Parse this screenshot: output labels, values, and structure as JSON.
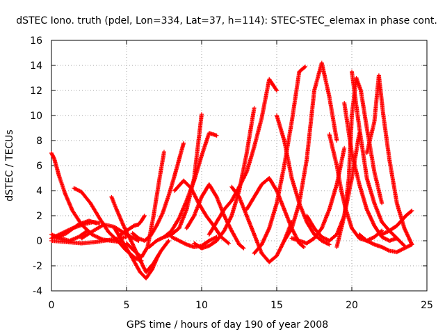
{
  "chart_data": {
    "type": "scatter",
    "title": "dSTEC Iono. truth (pdel, Lon=334, Lat=37, h=114): STEC-STEC_elemax in phase cont.",
    "xlabel": "GPS time / hours of day 190 of year 2008",
    "ylabel": "dSTEC  / TECUs",
    "xlim": [
      0,
      25
    ],
    "ylim": [
      -4,
      16
    ],
    "xticks": [
      0,
      5,
      10,
      15,
      20,
      25
    ],
    "yticks": [
      -4,
      -2,
      0,
      2,
      4,
      6,
      8,
      10,
      12,
      14,
      16
    ],
    "grid": true,
    "marker": "+",
    "color": "#ff0000",
    "series": [
      {
        "x": [
          0.0,
          0.2,
          0.5,
          0.9,
          1.4,
          2.0,
          2.7,
          3.4,
          4.0,
          4.6
        ],
        "y": [
          7.0,
          6.5,
          5.2,
          3.8,
          2.4,
          1.3,
          0.5,
          0.1,
          0.0,
          -0.1
        ]
      },
      {
        "x": [
          0.0,
          0.7,
          1.4,
          2.1,
          2.8,
          3.2
        ],
        "y": [
          0.2,
          0.6,
          1.0,
          1.3,
          1.5,
          1.4
        ]
      },
      {
        "x": [
          0.0,
          0.6,
          1.2,
          1.8,
          2.4
        ],
        "y": [
          0.5,
          0.2,
          0.0,
          0.3,
          0.8
        ]
      },
      {
        "x": [
          0.0,
          1.0,
          2.0,
          3.0,
          4.0,
          5.0
        ],
        "y": [
          0.0,
          -0.1,
          -0.2,
          -0.1,
          0.1,
          0.3
        ]
      },
      {
        "x": [
          0.3,
          1.0,
          1.8,
          2.5,
          3.0
        ],
        "y": [
          0.2,
          0.6,
          1.3,
          1.6,
          1.4
        ]
      },
      {
        "x": [
          1.5,
          2.0,
          2.6,
          3.2,
          3.8,
          4.4,
          5.0,
          5.6,
          6.0
        ],
        "y": [
          4.2,
          3.9,
          3.0,
          1.8,
          0.7,
          0.0,
          -0.8,
          -1.4,
          -1.6
        ]
      },
      {
        "x": [
          2.0,
          2.8,
          3.5,
          4.2,
          5.0,
          5.8
        ],
        "y": [
          0.2,
          0.8,
          1.3,
          1.1,
          0.5,
          0.0
        ]
      },
      {
        "x": [
          4.0,
          4.3,
          4.8,
          5.3,
          5.8,
          6.3,
          6.8,
          7.3,
          7.8
        ],
        "y": [
          3.5,
          2.6,
          1.2,
          0.0,
          -1.3,
          -2.5,
          -1.8,
          -0.8,
          0.0
        ]
      },
      {
        "x": [
          4.2,
          4.7,
          5.3,
          5.9,
          6.3,
          6.7,
          7.1
        ],
        "y": [
          1.0,
          0.0,
          -1.2,
          -2.5,
          -3.0,
          -2.3,
          -1.2
        ]
      },
      {
        "x": [
          5.0,
          5.5,
          6.0,
          6.4,
          6.8,
          7.2,
          7.5
        ],
        "y": [
          -0.2,
          -0.8,
          -1.3,
          -0.5,
          2.0,
          5.0,
          7.1
        ]
      },
      {
        "x": [
          4.5,
          5.0,
          5.5,
          5.8,
          6.0,
          6.2
        ],
        "y": [
          0.4,
          0.8,
          1.2,
          1.3,
          1.6,
          2.0
        ]
      },
      {
        "x": [
          5.4,
          5.8,
          6.2,
          6.6,
          7.0,
          7.4,
          7.8,
          8.2,
          8.5,
          8.8
        ],
        "y": [
          0.6,
          0.2,
          0.0,
          0.4,
          1.2,
          2.2,
          3.6,
          5.2,
          6.5,
          7.8
        ]
      },
      {
        "x": [
          6.5,
          7.0,
          7.5,
          8.0,
          8.5,
          9.0,
          9.5,
          10.0
        ],
        "y": [
          -0.5,
          0.0,
          0.3,
          0.5,
          1.0,
          2.5,
          5.0,
          10.1
        ]
      },
      {
        "x": [
          7.5,
          8.0,
          8.5,
          9.0,
          9.5,
          10.0,
          10.5,
          11.0
        ],
        "y": [
          0.3,
          0.8,
          1.8,
          3.2,
          4.8,
          6.8,
          8.6,
          8.4
        ]
      },
      {
        "x": [
          8.2,
          8.8,
          9.3,
          9.8,
          10.3,
          10.8,
          11.3,
          11.8
        ],
        "y": [
          4.0,
          4.8,
          4.2,
          3.0,
          2.0,
          1.2,
          0.3,
          -0.2
        ]
      },
      {
        "x": [
          9.0,
          9.5,
          10.0,
          10.5,
          11.0,
          11.5,
          12.0,
          12.5,
          12.8
        ],
        "y": [
          1.0,
          2.0,
          3.5,
          4.5,
          3.5,
          2.0,
          0.8,
          -0.3,
          -0.6
        ]
      },
      {
        "x": [
          8.0,
          8.5,
          9.0,
          9.5,
          10.0,
          10.5,
          11.0
        ],
        "y": [
          0.3,
          0.0,
          -0.3,
          -0.5,
          -0.4,
          0.0,
          0.3
        ]
      },
      {
        "x": [
          9.5,
          10.0,
          10.5,
          11.0,
          11.5,
          12.0,
          12.5,
          13.0,
          13.5
        ],
        "y": [
          -0.2,
          -0.6,
          -0.4,
          0.0,
          0.8,
          2.0,
          4.0,
          7.0,
          10.6
        ]
      },
      {
        "x": [
          10.5,
          11.0,
          11.5,
          12.0,
          12.5,
          13.0,
          13.5,
          14.0,
          14.5,
          15.0
        ],
        "y": [
          0.5,
          1.5,
          2.5,
          3.2,
          4.3,
          5.5,
          7.5,
          9.8,
          12.9,
          12.0
        ]
      },
      {
        "x": [
          12.0,
          12.5,
          13.0,
          13.5,
          14.0,
          14.5,
          15.0,
          15.5,
          16.0
        ],
        "y": [
          4.3,
          3.5,
          2.0,
          0.5,
          -1.0,
          -1.7,
          -1.2,
          0.0,
          1.5
        ]
      },
      {
        "x": [
          13.0,
          13.5,
          14.0,
          14.5,
          15.0,
          15.5,
          16.0,
          16.5,
          16.8
        ],
        "y": [
          2.5,
          3.5,
          4.5,
          5.0,
          4.0,
          2.5,
          1.0,
          -0.2,
          -0.5
        ]
      },
      {
        "x": [
          13.5,
          14.0,
          14.5,
          15.0,
          15.5,
          16.0,
          16.5,
          16.9
        ],
        "y": [
          -1.0,
          -0.3,
          1.0,
          3.0,
          6.0,
          9.5,
          13.5,
          13.9
        ]
      },
      {
        "x": [
          15.0,
          15.5,
          16.0,
          16.5,
          17.0,
          17.5,
          18.0,
          18.5
        ],
        "y": [
          10.0,
          8.0,
          5.0,
          3.0,
          1.5,
          0.5,
          0.0,
          -0.3
        ]
      },
      {
        "x": [
          15.5,
          16.0,
          16.5,
          17.0,
          17.5,
          18.0,
          18.5,
          19.0
        ],
        "y": [
          0.0,
          1.0,
          3.0,
          6.5,
          12.0,
          14.2,
          11.5,
          8.0
        ]
      },
      {
        "x": [
          16.0,
          16.5,
          17.0,
          17.5,
          18.0,
          18.5,
          19.0,
          19.5
        ],
        "y": [
          0.2,
          0.0,
          -0.2,
          0.2,
          1.0,
          2.5,
          4.5,
          7.4
        ]
      },
      {
        "x": [
          17.0,
          17.5,
          18.0,
          18.5,
          19.0,
          19.5,
          20.0,
          20.5
        ],
        "y": [
          2.0,
          1.0,
          0.3,
          0.0,
          0.5,
          2.0,
          5.0,
          8.6
        ]
      },
      {
        "x": [
          18.5,
          19.0,
          19.3,
          19.6,
          20.0,
          20.5,
          21.0,
          21.5,
          22.0
        ],
        "y": [
          8.5,
          6.0,
          4.0,
          2.5,
          1.0,
          0.2,
          0.0,
          0.3,
          0.8
        ]
      },
      {
        "x": [
          19.0,
          19.5,
          19.8,
          20.0,
          20.3,
          20.6,
          21.0,
          21.5,
          22.0
        ],
        "y": [
          -0.5,
          2.0,
          5.0,
          10.0,
          13.0,
          12.0,
          9.0,
          5.5,
          3.0
        ]
      },
      {
        "x": [
          19.5,
          20.0,
          20.5,
          21.0,
          21.5,
          22.0,
          22.5,
          23.0
        ],
        "y": [
          11.0,
          7.0,
          4.5,
          2.5,
          1.2,
          0.3,
          0.0,
          0.2
        ]
      },
      {
        "x": [
          20.0,
          20.5,
          21.0,
          21.5,
          22.0,
          22.5,
          23.0,
          23.5
        ],
        "y": [
          13.5,
          9.0,
          5.0,
          3.0,
          1.5,
          0.8,
          0.2,
          -0.4
        ]
      },
      {
        "x": [
          21.0,
          21.5,
          21.8,
          22.1,
          22.5,
          23.0,
          23.5,
          24.0
        ],
        "y": [
          7.0,
          9.5,
          13.2,
          10.0,
          6.5,
          3.0,
          1.0,
          -0.3
        ]
      },
      {
        "x": [
          20.5,
          21.0,
          21.5,
          22.0,
          22.5,
          23.0,
          23.5,
          24.0
        ],
        "y": [
          0.5,
          0.0,
          -0.3,
          -0.5,
          -0.8,
          -0.9,
          -0.6,
          -0.3
        ]
      },
      {
        "x": [
          22.0,
          22.5,
          23.0,
          23.3,
          23.6,
          24.0
        ],
        "y": [
          0.5,
          0.8,
          1.2,
          1.6,
          2.0,
          2.4
        ]
      }
    ]
  }
}
